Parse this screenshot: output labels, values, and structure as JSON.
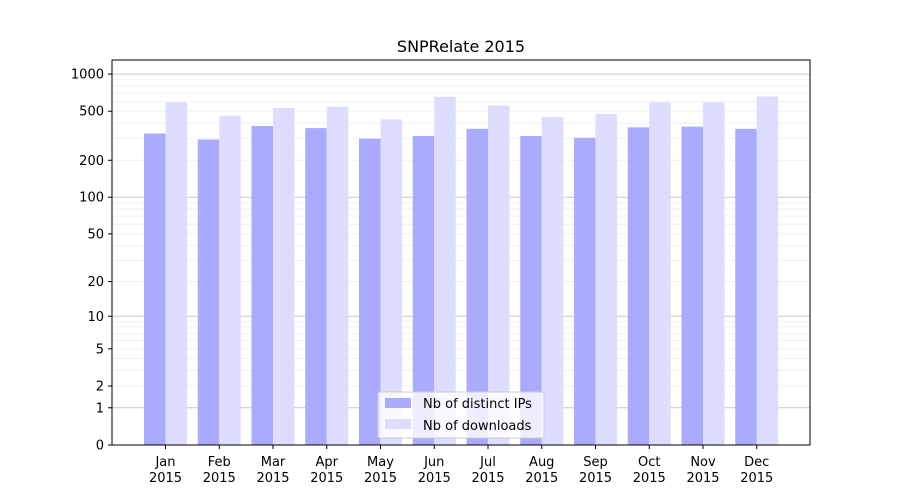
{
  "chart_data": {
    "type": "bar",
    "title": "SNPRelate 2015",
    "xlabel": "",
    "ylabel": "",
    "yscale": "log(1+y)",
    "ylim": [
      0,
      1300
    ],
    "yticks": [
      0,
      1,
      2,
      5,
      10,
      20,
      50,
      100,
      200,
      500,
      1000
    ],
    "grid": true,
    "legend_position": "bottom-center",
    "categories": [
      [
        "Jan",
        "2015"
      ],
      [
        "Feb",
        "2015"
      ],
      [
        "Mar",
        "2015"
      ],
      [
        "Apr",
        "2015"
      ],
      [
        "May",
        "2015"
      ],
      [
        "Jun",
        "2015"
      ],
      [
        "Jul",
        "2015"
      ],
      [
        "Aug",
        "2015"
      ],
      [
        "Sep",
        "2015"
      ],
      [
        "Oct",
        "2015"
      ],
      [
        "Nov",
        "2015"
      ],
      [
        "Dec",
        "2015"
      ]
    ],
    "series": [
      {
        "name": "Nb of distinct IPs",
        "color": "#aaaaff",
        "values": [
          330,
          295,
          380,
          365,
          300,
          315,
          360,
          315,
          305,
          370,
          375,
          360
        ]
      },
      {
        "name": "Nb of downloads",
        "color": "#ddddff",
        "values": [
          590,
          460,
          530,
          545,
          430,
          655,
          555,
          450,
          475,
          590,
          590,
          660
        ]
      }
    ]
  }
}
